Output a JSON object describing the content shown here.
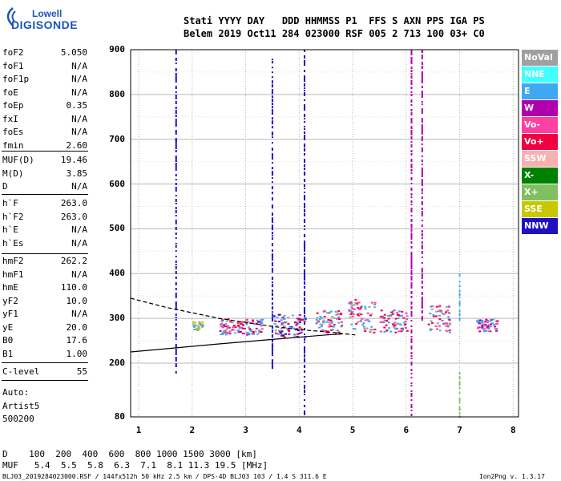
{
  "logo": {
    "line1": "Lowell",
    "line2": "DIGISONDE"
  },
  "header": {
    "line1": "Stati YYYY DAY   DDD HHMMSS P1  FFS S AXN PPS IGA PS",
    "line2": "Belem 2019 Oct11 284 023000 RSF 005 2 713 100 03+ C0"
  },
  "params_a": [
    {
      "name": "foF2",
      "value": "5.050"
    },
    {
      "name": "foF1",
      "value": "N/A"
    },
    {
      "name": "foF1p",
      "value": "N/A"
    },
    {
      "name": "foE",
      "value": "N/A"
    },
    {
      "name": "foEp",
      "value": "0.35"
    },
    {
      "name": "fxI",
      "value": "N/A"
    },
    {
      "name": "foEs",
      "value": "N/A"
    },
    {
      "name": "fmin",
      "value": "2.60"
    }
  ],
  "params_b": [
    {
      "name": "MUF(D)",
      "value": "19.46"
    },
    {
      "name": "M(D)",
      "value": "3.85"
    },
    {
      "name": "D",
      "value": "N/A"
    }
  ],
  "params_c": [
    {
      "name": "h`F",
      "value": "263.0"
    },
    {
      "name": "h`F2",
      "value": "263.0"
    },
    {
      "name": "h`E",
      "value": "N/A"
    },
    {
      "name": "h`Es",
      "value": "N/A"
    }
  ],
  "params_d": [
    {
      "name": "hmF2",
      "value": "262.2"
    },
    {
      "name": "hmF1",
      "value": "N/A"
    },
    {
      "name": "hmE",
      "value": "110.0"
    },
    {
      "name": "yF2",
      "value": "10.0"
    },
    {
      "name": "yF1",
      "value": "N/A"
    },
    {
      "name": "yE",
      "value": "20.0"
    },
    {
      "name": "B0",
      "value": "17.6"
    },
    {
      "name": "B1",
      "value": "1.00"
    }
  ],
  "params_e": [
    {
      "name": "C-level",
      "value": "55"
    }
  ],
  "auto": {
    "line1": "Auto:",
    "line2": "Artist5",
    "line3": "500200"
  },
  "legend": [
    {
      "label": "NoVal",
      "color": "#a0a0a0"
    },
    {
      "label": "NNE",
      "color": "#40ffff"
    },
    {
      "label": "E",
      "color": "#40a8f0"
    },
    {
      "label": "W",
      "color": "#b000b0"
    },
    {
      "label": "Vo-",
      "color": "#ff40a0"
    },
    {
      "label": "Vo+",
      "color": "#f00040"
    },
    {
      "label": "SSW",
      "color": "#f8b0b0"
    },
    {
      "label": "X-",
      "color": "#008000"
    },
    {
      "label": "X+",
      "color": "#80c060"
    },
    {
      "label": "SSE",
      "color": "#c8c800"
    },
    {
      "label": "NNW",
      "color": "#2010c0"
    }
  ],
  "footer": {
    "d_row": "D    100  200  400  600  800 1000 1500 3000 [km]",
    "muf_row": "MUF   5.4  5.5  5.8  6.3  7.1  8.1 11.3 19.5 [MHz]",
    "file_info": "BLJ03_2019284023000.RSF / 144fx512h 50 kHz 2.5 km / DPS-4D BLJ03 103 / 1.4 S 311.6 E",
    "version": "Ion2Png v. 1.3.17"
  },
  "chart_data": {
    "type": "scatter",
    "title": "",
    "xlabel": "",
    "ylabel": "",
    "x_ticks": [
      "1",
      "2",
      "3",
      "4",
      "5",
      "6",
      "7",
      "8"
    ],
    "y_ticks": [
      "80",
      "200",
      "300",
      "400",
      "500",
      "600",
      "700",
      "800",
      "900"
    ],
    "xlim": [
      0.85,
      8.1
    ],
    "ylim": [
      80,
      900
    ],
    "grid": true,
    "legend_position": "right",
    "profile_curves": [
      {
        "style": "dashed",
        "points": [
          [
            0.85,
            345
          ],
          [
            1.5,
            325
          ],
          [
            2.5,
            300
          ],
          [
            3.5,
            282
          ],
          [
            4.0,
            275
          ],
          [
            4.5,
            270
          ],
          [
            5.05,
            263
          ]
        ]
      },
      {
        "style": "solid",
        "points": [
          [
            0.85,
            225
          ],
          [
            1.5,
            232
          ],
          [
            2.5,
            243
          ],
          [
            3.5,
            253
          ],
          [
            4.0,
            258
          ],
          [
            4.5,
            263
          ],
          [
            4.8,
            265
          ]
        ]
      }
    ],
    "echo_clusters": [
      {
        "x_range": [
          2.0,
          2.2
        ],
        "y_range": [
          275,
          295
        ],
        "colors": [
          "#40a8f0",
          "#c8c800",
          "#80c060",
          "#a0a0a0"
        ]
      },
      {
        "x_range": [
          2.5,
          3.3
        ],
        "y_range": [
          265,
          300
        ],
        "colors": [
          "#f00040",
          "#ff40a0",
          "#b000b0",
          "#40a8f0",
          "#a0a0a0"
        ]
      },
      {
        "x_range": [
          3.5,
          4.1
        ],
        "y_range": [
          260,
          310
        ],
        "colors": [
          "#f00040",
          "#40a8f0",
          "#b000b0",
          "#2010c0",
          "#a0a0a0"
        ]
      },
      {
        "x_range": [
          4.3,
          4.8
        ],
        "y_range": [
          268,
          320
        ],
        "colors": [
          "#f00040",
          "#ff40a0",
          "#40a8f0",
          "#a0a0a0"
        ]
      },
      {
        "x_range": [
          4.9,
          5.4
        ],
        "y_range": [
          270,
          345
        ],
        "colors": [
          "#f00040",
          "#40a8f0",
          "#ff40a0",
          "#a0a0a0"
        ]
      },
      {
        "x_range": [
          5.5,
          6.0
        ],
        "y_range": [
          270,
          320
        ],
        "colors": [
          "#f00040",
          "#ff40a0",
          "#40a8f0"
        ]
      },
      {
        "x_range": [
          6.4,
          6.8
        ],
        "y_range": [
          270,
          330
        ],
        "colors": [
          "#f00040",
          "#ff40a0",
          "#40a8f0",
          "#a0a0a0"
        ]
      },
      {
        "x_range": [
          7.3,
          7.7
        ],
        "y_range": [
          270,
          300
        ],
        "colors": [
          "#f00040",
          "#ff40a0",
          "#b000b0",
          "#40a8f0"
        ]
      }
    ],
    "vertical_traces": [
      {
        "x": 1.7,
        "y_range": [
          170,
          900
        ],
        "color": "#2010c0"
      },
      {
        "x": 3.5,
        "y_range": [
          190,
          880
        ],
        "color": "#2010c0"
      },
      {
        "x": 4.1,
        "y_range": [
          80,
          900
        ],
        "color": "#2010c0"
      },
      {
        "x": 6.1,
        "y_range": [
          80,
          900
        ],
        "color": "#b000b0"
      },
      {
        "x": 6.3,
        "y_range": [
          300,
          900
        ],
        "color": "#b000b0"
      },
      {
        "x": 7.0,
        "y_range": [
          80,
          180
        ],
        "color": "#80c060"
      },
      {
        "x": 7.0,
        "y_range": [
          300,
          400
        ],
        "color": "#40a8f0"
      }
    ]
  }
}
